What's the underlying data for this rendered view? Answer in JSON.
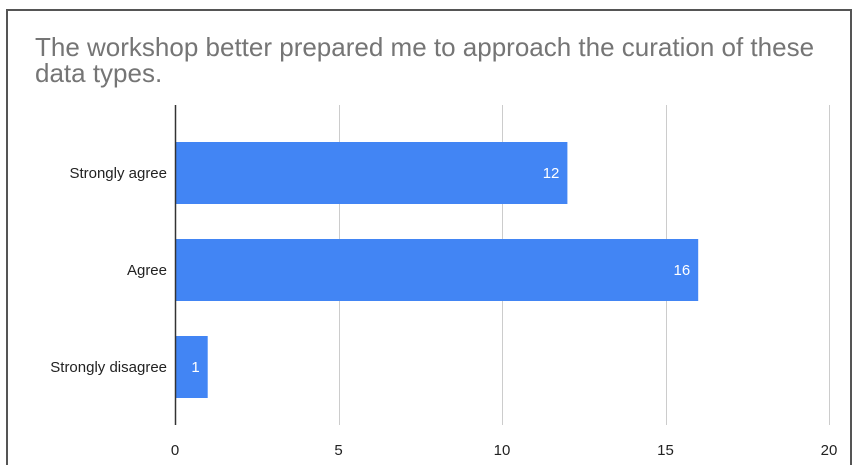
{
  "chart_data": {
    "type": "bar",
    "orientation": "horizontal",
    "title": "The workshop better prepared me to approach the curation of these data types.",
    "categories": [
      "Strongly agree",
      "Agree",
      "Strongly disagree"
    ],
    "values": [
      12,
      16,
      1
    ],
    "data_labels": [
      "12",
      "16",
      "1"
    ],
    "xlim": [
      0,
      20
    ],
    "x_ticks": [
      0,
      5,
      10,
      15,
      20
    ],
    "x_tick_labels": [
      "0",
      "5",
      "10",
      "15",
      "20"
    ],
    "xlabel": "",
    "ylabel": "",
    "grid": "vertical",
    "legend": "none",
    "bar_color": "#4285f4",
    "gridline_color": "#cccccc",
    "axis_color": "#333333"
  }
}
